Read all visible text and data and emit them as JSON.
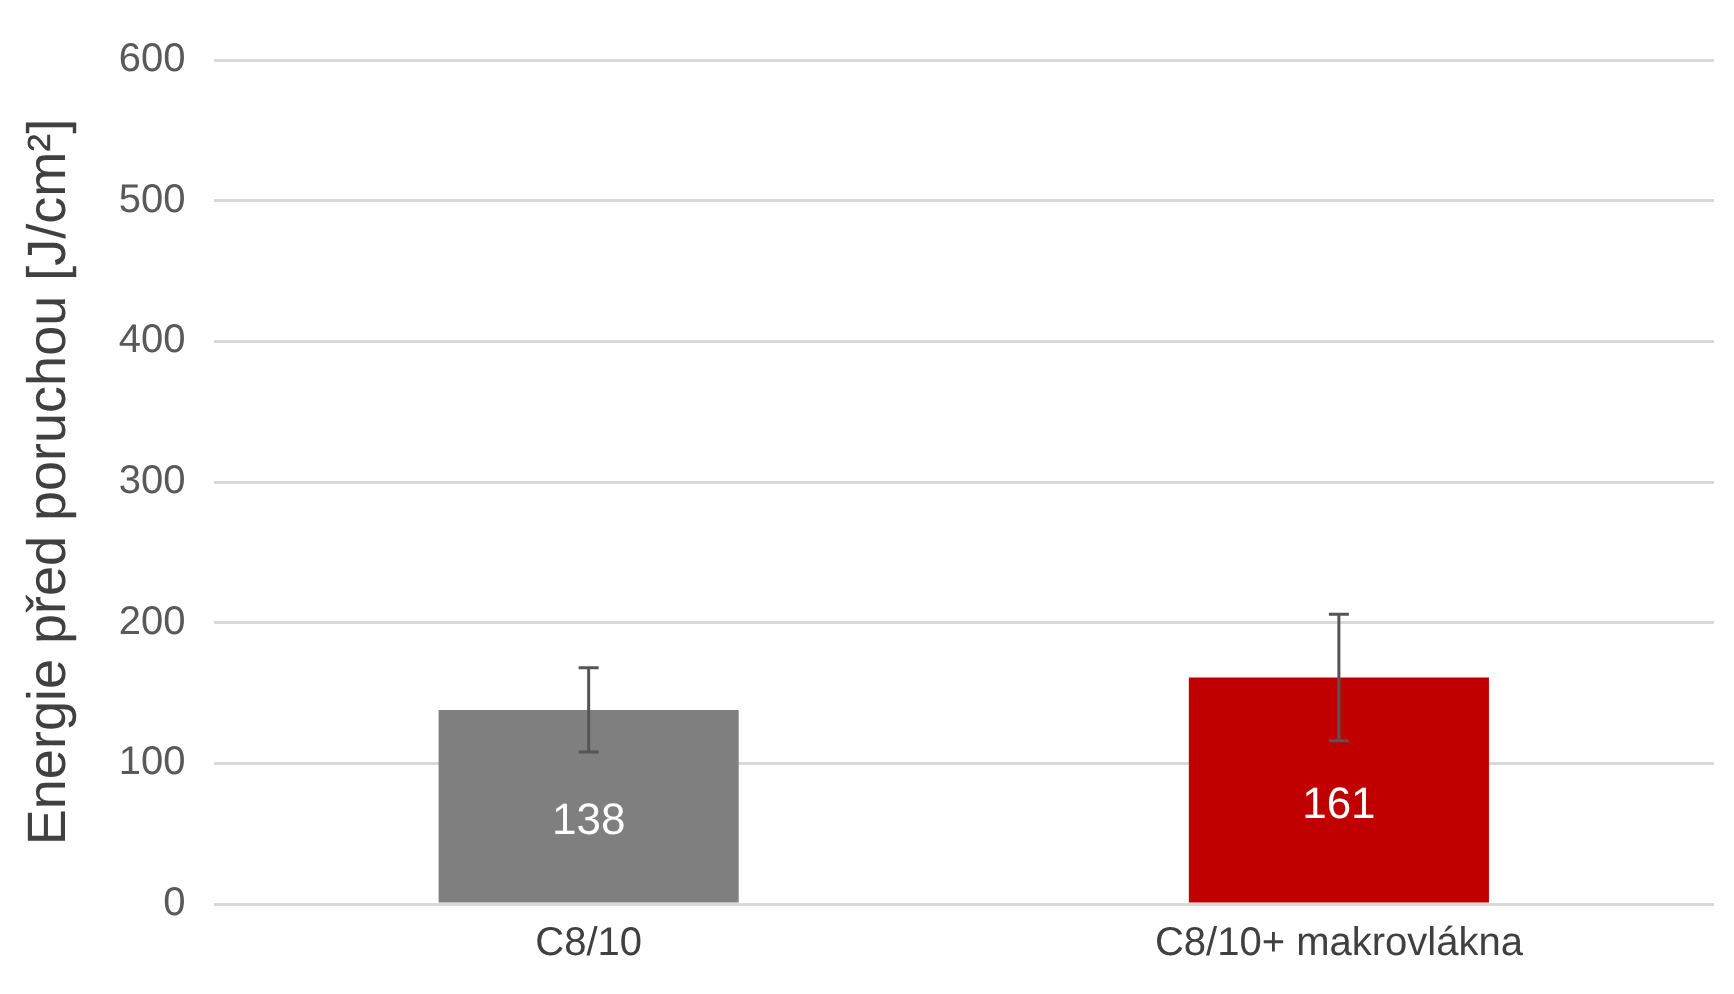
{
  "chart_data": {
    "type": "bar",
    "ylabel": "Energie před poruchou [J/cm²]",
    "categories": [
      "C8/10",
      "C8/10+ makrovlákna"
    ],
    "values": [
      138,
      161
    ],
    "colors": [
      "#7f7f7f",
      "#c00000"
    ],
    "errors": [
      30,
      45
    ],
    "ylim": [
      0,
      600
    ],
    "yticks": [
      0,
      100,
      200,
      300,
      400,
      500,
      600
    ],
    "grid": "y",
    "data_labels": true,
    "legend": false
  }
}
